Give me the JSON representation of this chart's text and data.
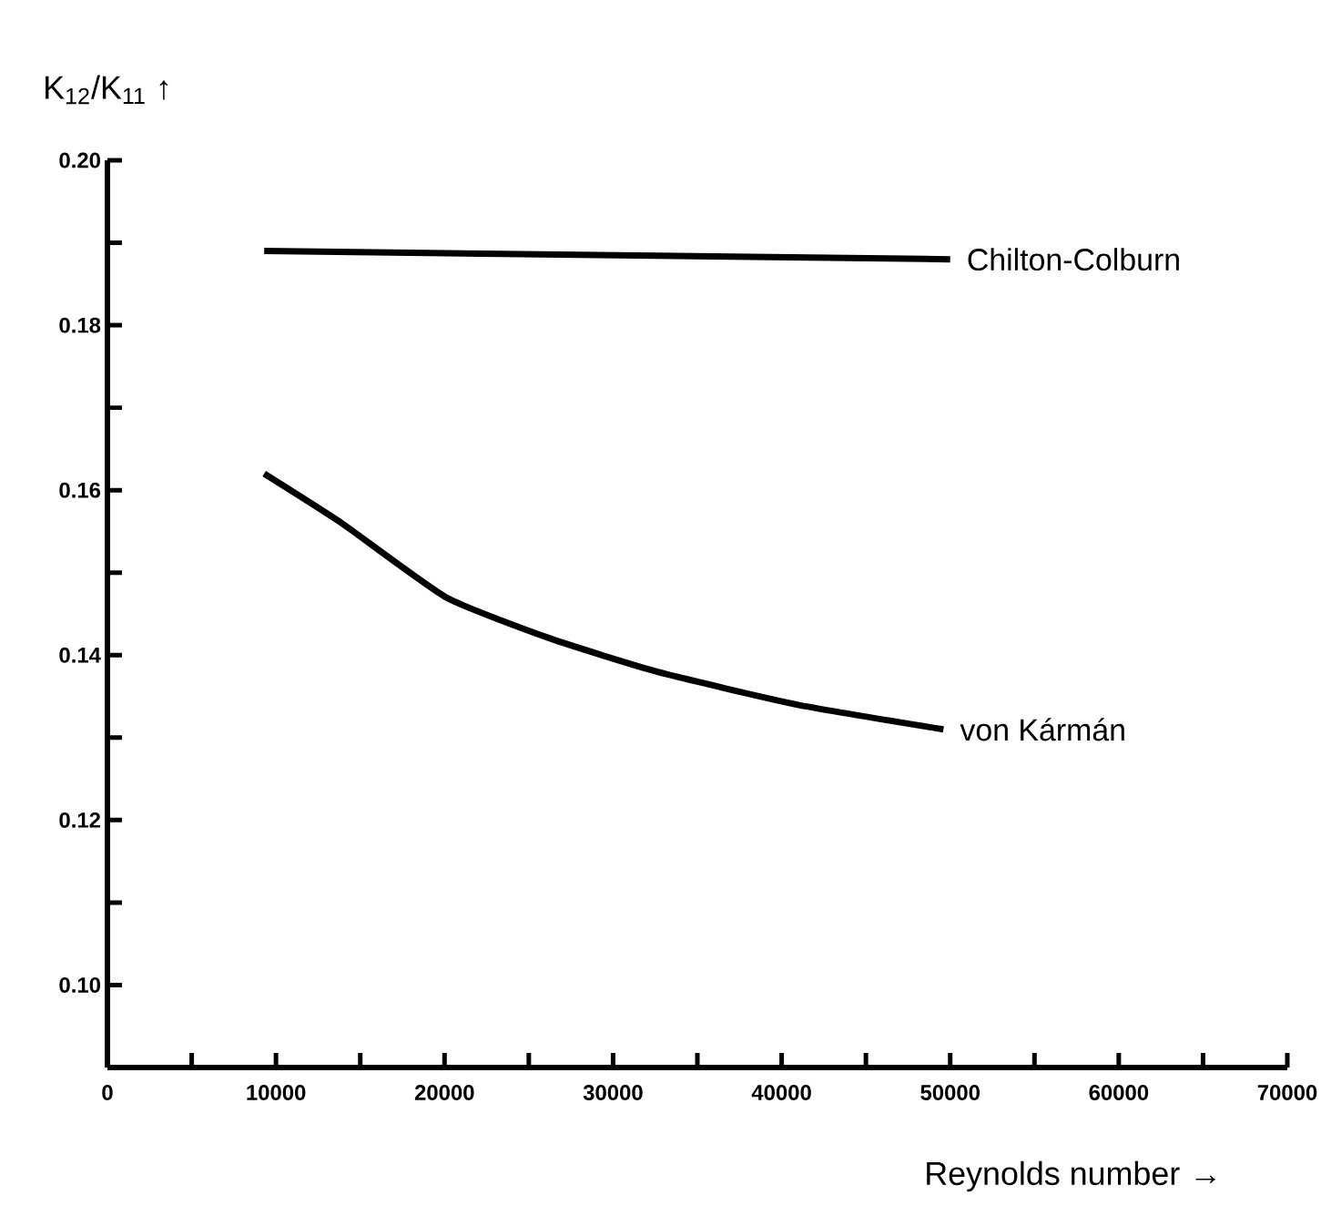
{
  "chart_data": {
    "type": "line",
    "xlabel": "Reynolds number →",
    "ylabel": "K$_{12}$/K$_{11}$ ↑",
    "xlim": [
      0,
      70000
    ],
    "ylim": [
      0.09,
      0.2
    ],
    "xticks": [
      0,
      {
        "value": 5000,
        "label": null
      },
      10000,
      {
        "value": 15000,
        "label": null
      },
      20000,
      {
        "value": 25000,
        "label": null
      },
      30000,
      {
        "value": 35000,
        "label": null
      },
      40000,
      {
        "value": 45000,
        "label": null
      },
      50000,
      {
        "value": 55000,
        "label": null
      },
      60000,
      {
        "value": 65000,
        "label": null
      },
      70000
    ],
    "yticks": [
      {
        "value": 0.1,
        "label": "0.10"
      },
      {
        "value": 0.11,
        "label": null
      },
      {
        "value": 0.12,
        "label": "0.12"
      },
      {
        "value": 0.13,
        "label": null
      },
      {
        "value": 0.14,
        "label": "0.14"
      },
      {
        "value": 0.15,
        "label": null
      },
      {
        "value": 0.16,
        "label": "0.16"
      },
      {
        "value": 0.17,
        "label": null
      },
      {
        "value": 0.18,
        "label": "0.18"
      },
      {
        "value": 0.19,
        "label": null
      },
      {
        "value": 0.2,
        "label": "0.20"
      }
    ],
    "marker": "none",
    "line_style": "solid",
    "series": [
      {
        "name": "Chilton-Colburn",
        "color": "#000000",
        "x": [
          9300,
          50000
        ],
        "values": [
          0.189,
          0.188
        ]
      },
      {
        "name": "von Kármán",
        "color": "#000000",
        "x": [
          9300,
          13900,
          20100,
          26300,
          32600,
          40900,
          49600
        ],
        "values": [
          0.162,
          0.156,
          0.147,
          0.142,
          0.138,
          0.134,
          0.131
        ]
      }
    ]
  }
}
